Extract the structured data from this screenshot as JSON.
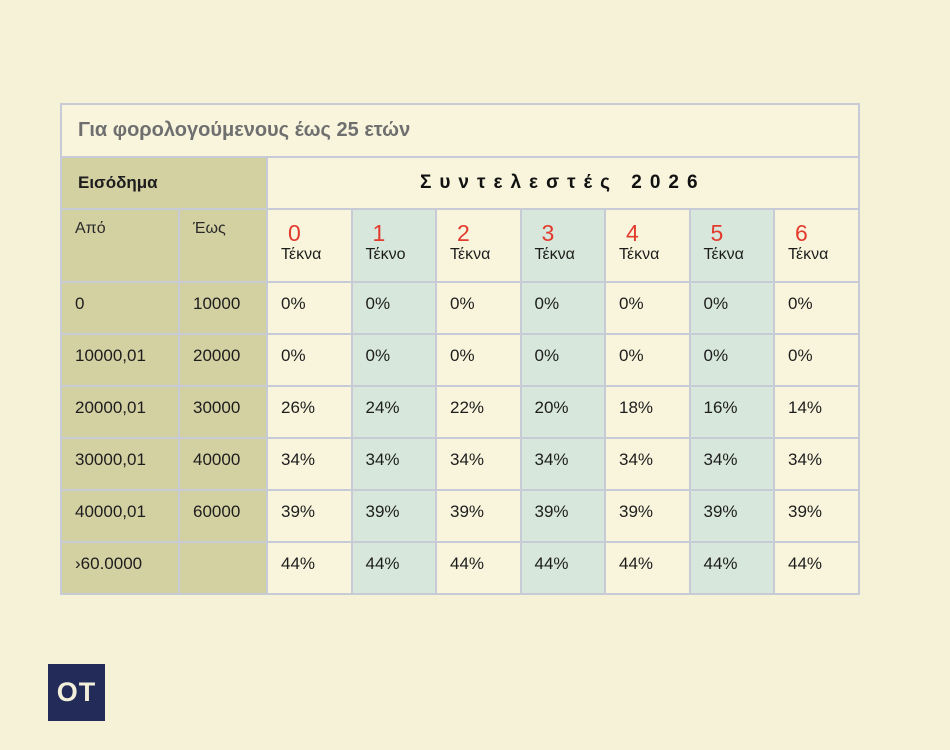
{
  "chart_data": {
    "type": "table",
    "title": "Για φορολογούμενους έως 25 ετών",
    "income_group_header": "Εισόδημα",
    "rates_group_header": "Συντελεστές 2026",
    "income_columns": {
      "from": "Από",
      "to": "Έως"
    },
    "children_columns": [
      {
        "number": "0",
        "label": "Τέκνα"
      },
      {
        "number": "1",
        "label": "Τέκνο"
      },
      {
        "number": "2",
        "label": "Τέκνα"
      },
      {
        "number": "3",
        "label": "Τέκνα"
      },
      {
        "number": "4",
        "label": "Τέκνα"
      },
      {
        "number": "5",
        "label": "Τέκνα"
      },
      {
        "number": "6",
        "label": "Τέκνα"
      }
    ],
    "rows": [
      {
        "from": "0",
        "to": "10000",
        "rates": [
          "0%",
          "0%",
          "0%",
          "0%",
          "0%",
          "0%",
          "0%"
        ]
      },
      {
        "from": "10000,01",
        "to": "20000",
        "rates": [
          "0%",
          "0%",
          "0%",
          "0%",
          "0%",
          "0%",
          "0%"
        ]
      },
      {
        "from": "20000,01",
        "to": "30000",
        "rates": [
          "26%",
          "24%",
          "22%",
          "20%",
          "18%",
          "16%",
          "14%"
        ]
      },
      {
        "from": "30000,01",
        "to": "40000",
        "rates": [
          "34%",
          "34%",
          "34%",
          "34%",
          "34%",
          "34%",
          "34%"
        ]
      },
      {
        "from": "40000,01",
        "to": "60000",
        "rates": [
          "39%",
          "39%",
          "39%",
          "39%",
          "39%",
          "39%",
          "39%"
        ]
      },
      {
        "from": "›60.0000",
        "to": "",
        "rates": [
          "44%",
          "44%",
          "44%",
          "44%",
          "44%",
          "44%",
          "44%"
        ]
      }
    ]
  },
  "logo": {
    "text": "OT"
  },
  "colors": {
    "background": "#f5f2d8",
    "cream": "#f8f5dc",
    "olive": "#d3d0a2",
    "teal": "#d7e7db",
    "border": "#c7cbd6",
    "header_red": "#e23b2e",
    "title_gray": "#6f6f6f",
    "text_dark": "#1d1d1d",
    "logo_navy": "#232c58",
    "logo_text": "#f2efda"
  }
}
